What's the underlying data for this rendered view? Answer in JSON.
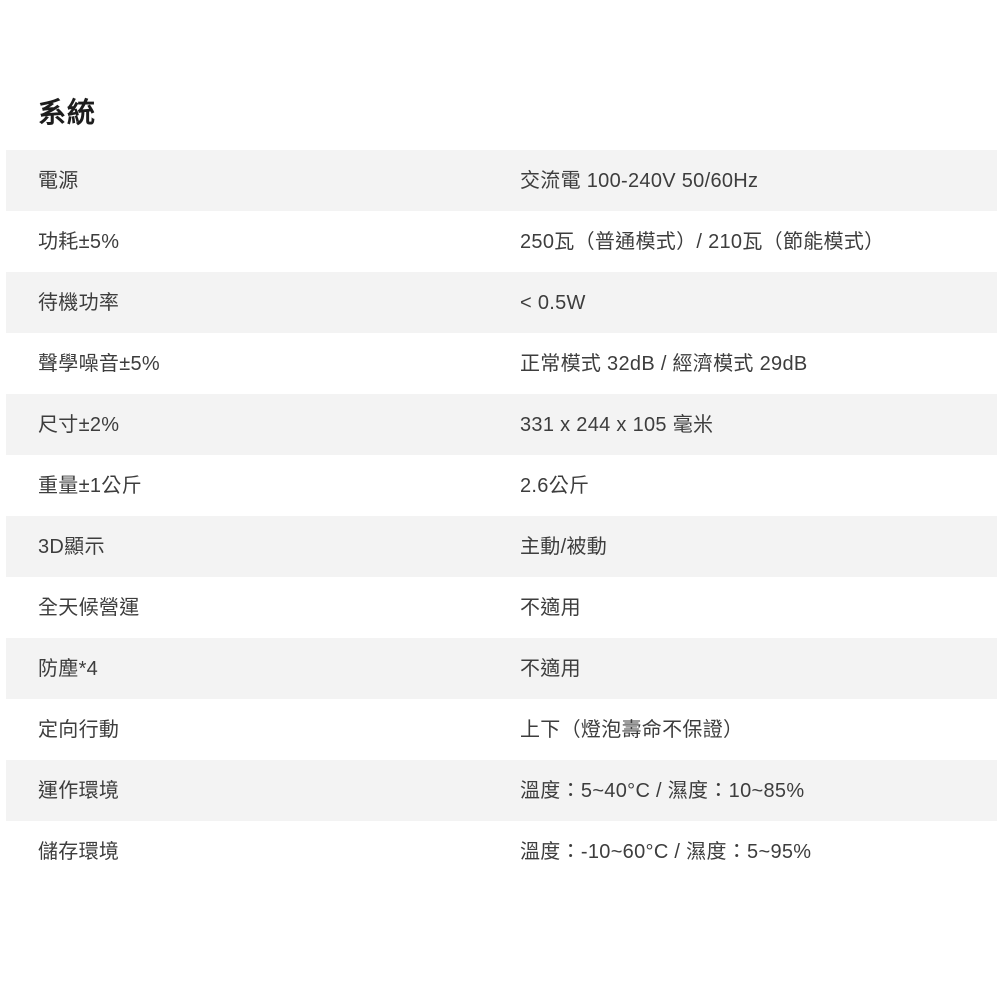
{
  "page": {
    "title": "系統"
  },
  "colors": {
    "stripe": "#f3f3f3",
    "body_text": "#3d3d3d",
    "title_text": "#1d1d1d",
    "background": "#ffffff"
  },
  "table": {
    "rows": [
      {
        "label": "電源",
        "value": "交流電 100-240V 50/60Hz"
      },
      {
        "label": "功耗±5%",
        "value": "250瓦（普通模式）/ 210瓦（節能模式）"
      },
      {
        "label": "待機功率",
        "value": "< 0.5W"
      },
      {
        "label": "聲學噪音±5%",
        "value": "正常模式 32dB / 經濟模式 29dB"
      },
      {
        "label": "尺寸±2%",
        "value": "331 x 244 x 105 毫米"
      },
      {
        "label": "重量±1公斤",
        "value": "2.6公斤"
      },
      {
        "label": "3D顯示",
        "value": "主動/被動"
      },
      {
        "label": "全天候營運",
        "value": "不適用"
      },
      {
        "label": "防塵*4",
        "value": "不適用"
      },
      {
        "label": "定向行動",
        "value": "上下（燈泡壽命不保證）"
      },
      {
        "label": "運作環境",
        "value": "溫度：5~40°C / 濕度：10~85%"
      },
      {
        "label": "儲存環境",
        "value": "溫度：-10~60°C / 濕度：5~95%"
      }
    ]
  }
}
